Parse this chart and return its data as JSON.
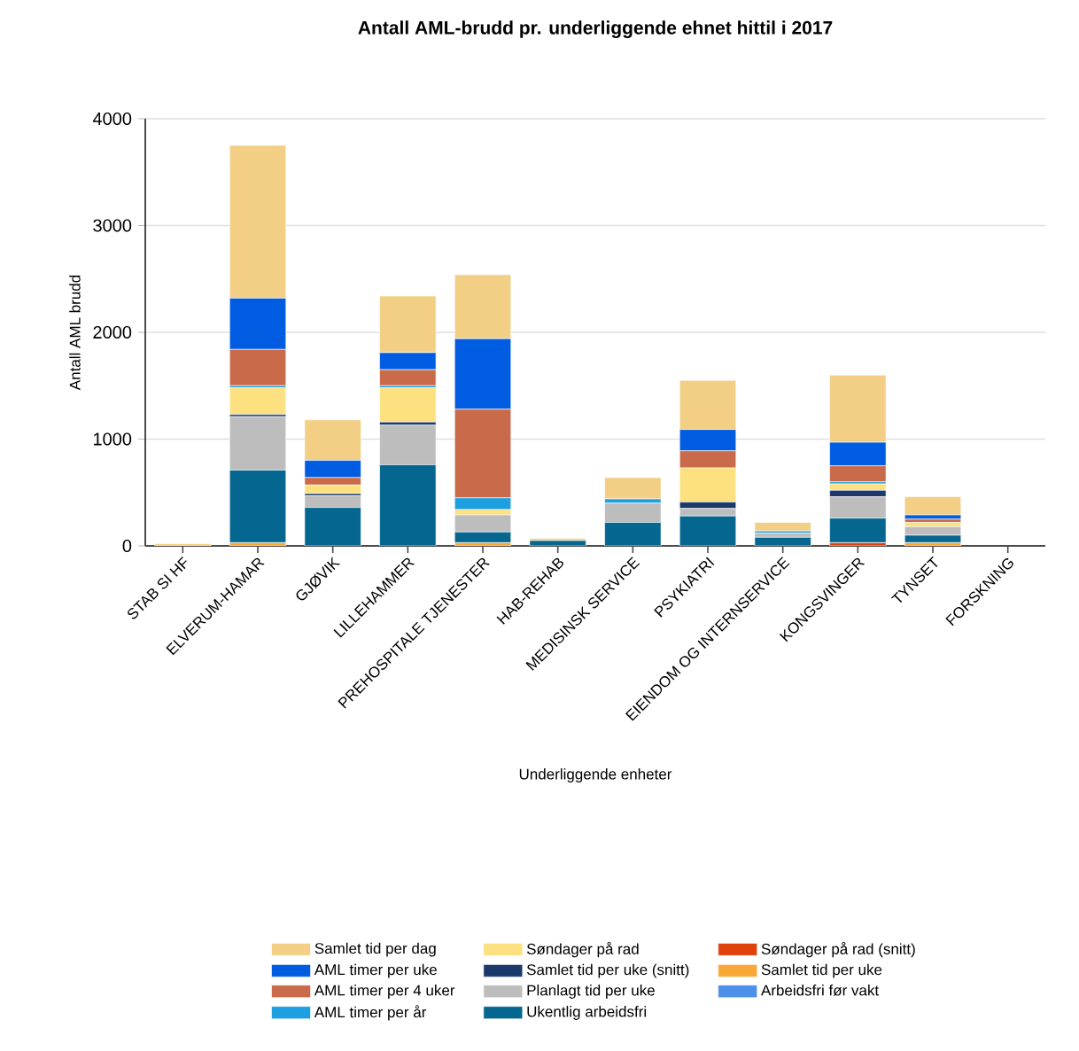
{
  "chart_data": {
    "type": "bar",
    "title": "Antall AML-brudd pr. underliggende ehnet hittil i 2017",
    "xlabel": "Underliggende enheter",
    "ylabel": "Antall AML brudd",
    "categories": [
      "STAB SI HF",
      "ELVERUM-HAMAR",
      "GJØVIK",
      "LILLEHAMMER",
      "PREHOSPITALE TJENESTER",
      "HAB-REHAB",
      "MEDISINSK SERVICE",
      "PSYKIATRI",
      "EIENDOM OG INTERNSERVICE",
      "KONGSVINGER",
      "TYNSET",
      "FORSKNING"
    ],
    "stacked": true,
    "ylim": [
      0,
      4000
    ],
    "yticks": [
      0,
      1000,
      2000,
      3000,
      4000
    ],
    "grid": "y",
    "legend": "bottom",
    "series": [
      {
        "name": "Arbeidsfri før vakt",
        "color": "#4a8fe8",
        "values": [
          0,
          0,
          0,
          0,
          0,
          0,
          0,
          0,
          0,
          0,
          0,
          0
        ]
      },
      {
        "name": "Samlet tid per uke",
        "color": "#f8a836",
        "values": [
          0,
          30,
          0,
          0,
          30,
          0,
          0,
          0,
          0,
          0,
          30,
          0
        ]
      },
      {
        "name": "Søndager på rad (snitt)",
        "color": "#e0420e",
        "values": [
          0,
          0,
          0,
          0,
          0,
          0,
          0,
          0,
          0,
          30,
          0,
          0
        ]
      },
      {
        "name": "Ukentlig arbeidsfri",
        "color": "#05668f",
        "values": [
          0,
          680,
          360,
          760,
          100,
          50,
          220,
          280,
          80,
          230,
          70,
          0
        ]
      },
      {
        "name": "Planlagt tid per uke",
        "color": "#bdbdbd",
        "values": [
          0,
          500,
          110,
          370,
          160,
          0,
          180,
          70,
          40,
          200,
          80,
          0
        ]
      },
      {
        "name": "Samlet tid per uke (snitt)",
        "color": "#1b3a6b",
        "values": [
          0,
          20,
          20,
          30,
          0,
          0,
          0,
          60,
          0,
          60,
          0,
          0
        ]
      },
      {
        "name": "Søndager på rad",
        "color": "#fde07f",
        "values": [
          0,
          250,
          80,
          320,
          50,
          0,
          0,
          320,
          0,
          60,
          40,
          0
        ]
      },
      {
        "name": "AML timer per år",
        "color": "#1e9fe0",
        "values": [
          0,
          20,
          0,
          20,
          110,
          0,
          40,
          0,
          20,
          20,
          0,
          0
        ]
      },
      {
        "name": "AML timer per 4 uker",
        "color": "#c96a4a",
        "values": [
          0,
          340,
          70,
          150,
          830,
          0,
          0,
          160,
          0,
          150,
          30,
          0
        ]
      },
      {
        "name": "AML timer per uke",
        "color": "#005ce0",
        "values": [
          0,
          480,
          160,
          160,
          660,
          0,
          0,
          200,
          0,
          220,
          40,
          0
        ]
      },
      {
        "name": "Samlet tid per dag",
        "color": "#f2cf85",
        "values": [
          20,
          1430,
          380,
          530,
          600,
          20,
          200,
          460,
          80,
          630,
          170,
          0
        ]
      }
    ]
  }
}
